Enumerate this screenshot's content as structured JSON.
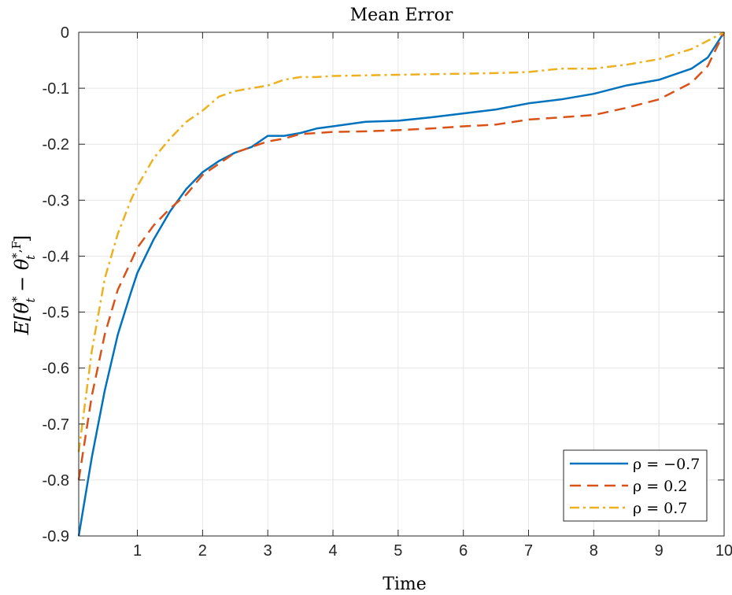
{
  "chart_data": {
    "type": "line",
    "title": "Mean Error",
    "xlabel": "Time",
    "ylabel": "E[θ*_t − θ*,F_t]",
    "ylabel_parts": {
      "lead": "E[",
      "theta1": "θ",
      "sup1": "*",
      "sub1": "t",
      "minus": " − ",
      "theta2": "θ",
      "sup2": "*,F",
      "sub2": "t",
      "close": "]"
    },
    "xlim": [
      0.1,
      10
    ],
    "ylim": [
      -0.9,
      0
    ],
    "xticks": [
      1,
      2,
      3,
      4,
      5,
      6,
      7,
      8,
      9,
      10
    ],
    "xtick_labels": [
      "1",
      "2",
      "3",
      "4",
      "5",
      "6",
      "7",
      "8",
      "9",
      "10"
    ],
    "yticks": [
      0,
      -0.1,
      -0.2,
      -0.3,
      -0.4,
      -0.5,
      -0.6,
      -0.7,
      -0.8,
      -0.9
    ],
    "ytick_labels": [
      "0",
      "-0.1",
      "-0.2",
      "-0.3",
      "-0.4",
      "-0.5",
      "-0.6",
      "-0.7",
      "-0.8",
      "-0.9"
    ],
    "grid": true,
    "legend_position": "bottom-right",
    "series": [
      {
        "name": "ρ = −0.7",
        "color": "#0072BD",
        "style": "solid",
        "x": [
          0.1,
          0.3,
          0.5,
          0.7,
          0.9,
          1.0,
          1.25,
          1.5,
          1.75,
          2.0,
          2.25,
          2.5,
          2.75,
          3.0,
          3.25,
          3.5,
          3.75,
          4.0,
          4.5,
          5.0,
          5.5,
          6.0,
          6.5,
          7.0,
          7.5,
          8.0,
          8.5,
          9.0,
          9.5,
          9.75,
          10.0
        ],
        "y": [
          -0.9,
          -0.76,
          -0.64,
          -0.54,
          -0.465,
          -0.43,
          -0.37,
          -0.32,
          -0.28,
          -0.25,
          -0.23,
          -0.215,
          -0.205,
          -0.185,
          -0.185,
          -0.18,
          -0.172,
          -0.168,
          -0.16,
          -0.158,
          -0.152,
          -0.145,
          -0.138,
          -0.127,
          -0.12,
          -0.11,
          -0.095,
          -0.085,
          -0.065,
          -0.045,
          0.0
        ]
      },
      {
        "name": "ρ = 0.2",
        "color": "#D95319",
        "style": "dashed",
        "x": [
          0.1,
          0.3,
          0.5,
          0.7,
          0.9,
          1.0,
          1.25,
          1.5,
          1.75,
          2.0,
          2.25,
          2.5,
          2.75,
          3.0,
          3.25,
          3.5,
          3.75,
          4.0,
          4.5,
          5.0,
          5.5,
          6.0,
          6.5,
          7.0,
          7.5,
          8.0,
          8.5,
          9.0,
          9.5,
          9.75,
          10.0
        ],
        "y": [
          -0.8,
          -0.65,
          -0.54,
          -0.46,
          -0.41,
          -0.385,
          -0.345,
          -0.315,
          -0.29,
          -0.255,
          -0.235,
          -0.215,
          -0.205,
          -0.195,
          -0.19,
          -0.182,
          -0.18,
          -0.178,
          -0.177,
          -0.175,
          -0.172,
          -0.168,
          -0.165,
          -0.156,
          -0.152,
          -0.148,
          -0.135,
          -0.12,
          -0.09,
          -0.06,
          0.0
        ]
      },
      {
        "name": "ρ = 0.7",
        "color": "#EDB120",
        "style": "dashdot",
        "x": [
          0.1,
          0.3,
          0.5,
          0.7,
          0.9,
          1.0,
          1.25,
          1.5,
          1.75,
          2.0,
          2.25,
          2.5,
          2.75,
          3.0,
          3.25,
          3.5,
          3.75,
          4.0,
          4.5,
          5.0,
          5.5,
          6.0,
          6.5,
          7.0,
          7.5,
          8.0,
          8.5,
          9.0,
          9.5,
          9.75,
          10.0
        ],
        "y": [
          -0.75,
          -0.57,
          -0.44,
          -0.36,
          -0.3,
          -0.275,
          -0.225,
          -0.19,
          -0.16,
          -0.14,
          -0.115,
          -0.105,
          -0.1,
          -0.095,
          -0.085,
          -0.08,
          -0.08,
          -0.078,
          -0.077,
          -0.076,
          -0.075,
          -0.074,
          -0.073,
          -0.071,
          -0.065,
          -0.065,
          -0.058,
          -0.048,
          -0.03,
          -0.015,
          0.0
        ]
      }
    ]
  }
}
